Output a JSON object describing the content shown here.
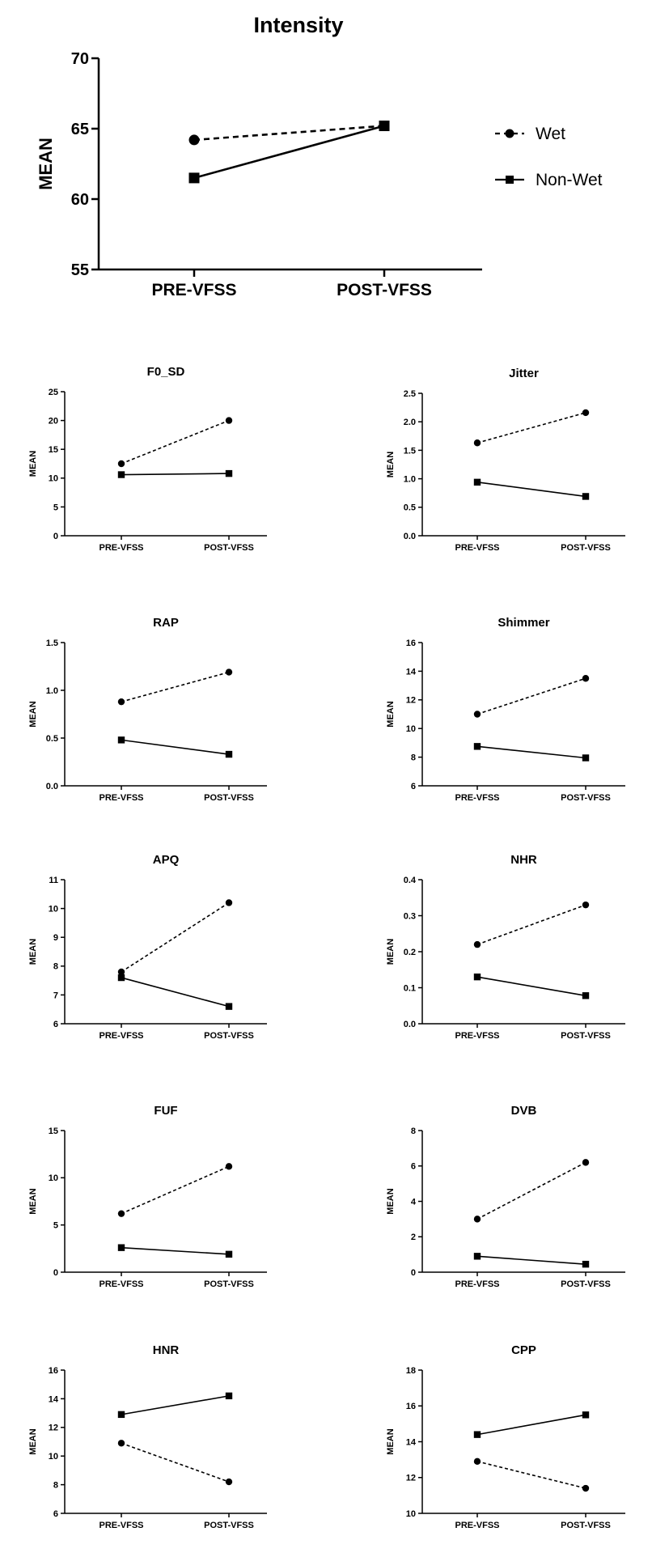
{
  "legend": {
    "position": "right of Intensity chart",
    "items": [
      {
        "label": "Wet",
        "line": "dashed",
        "marker": "circle"
      },
      {
        "label": "Non-Wet",
        "line": "solid",
        "marker": "square"
      }
    ]
  },
  "chart_data": [
    {
      "type": "line",
      "title": "Intensity",
      "ylabel": "MEAN",
      "categories": [
        "PRE-VFSS",
        "POST-VFSS"
      ],
      "ylim": [
        55,
        70
      ],
      "yticks": [
        "55",
        "60",
        "65",
        "70"
      ],
      "series": [
        {
          "name": "Wet",
          "values": [
            64.2,
            65.2
          ]
        },
        {
          "name": "Non-Wet",
          "values": [
            61.5,
            65.2
          ]
        }
      ]
    },
    {
      "type": "line",
      "title": "F0_SD",
      "ylabel": "MEAN",
      "categories": [
        "PRE-VFSS",
        "POST-VFSS"
      ],
      "ylim": [
        0,
        25
      ],
      "yticks": [
        "0",
        "5",
        "10",
        "15",
        "20",
        "25"
      ],
      "series": [
        {
          "name": "Wet",
          "values": [
            12.5,
            20.0
          ]
        },
        {
          "name": "Non-Wet",
          "values": [
            10.6,
            10.8
          ]
        }
      ]
    },
    {
      "type": "line",
      "title": "Jitter",
      "ylabel": "MEAN",
      "categories": [
        "PRE-VFSS",
        "POST-VFSS"
      ],
      "ylim": [
        0,
        2.5
      ],
      "yticks": [
        "0.0",
        "0.5",
        "1.0",
        "1.5",
        "2.0",
        "2.5"
      ],
      "series": [
        {
          "name": "Wet",
          "values": [
            1.63,
            2.16
          ]
        },
        {
          "name": "Non-Wet",
          "values": [
            0.94,
            0.69
          ]
        }
      ]
    },
    {
      "type": "line",
      "title": "RAP",
      "ylabel": "MEAN",
      "categories": [
        "PRE-VFSS",
        "POST-VFSS"
      ],
      "ylim": [
        0,
        1.5
      ],
      "yticks": [
        "0.0",
        "0.5",
        "1.0",
        "1.5"
      ],
      "series": [
        {
          "name": "Wet",
          "values": [
            0.88,
            1.19
          ]
        },
        {
          "name": "Non-Wet",
          "values": [
            0.48,
            0.33
          ]
        }
      ]
    },
    {
      "type": "line",
      "title": "Shimmer",
      "ylabel": "MEAN",
      "categories": [
        "PRE-VFSS",
        "POST-VFSS"
      ],
      "ylim": [
        6,
        16
      ],
      "yticks": [
        "6",
        "8",
        "10",
        "12",
        "14",
        "16"
      ],
      "series": [
        {
          "name": "Wet",
          "values": [
            11.0,
            13.5
          ]
        },
        {
          "name": "Non-Wet",
          "values": [
            8.75,
            7.95
          ]
        }
      ]
    },
    {
      "type": "line",
      "title": "APQ",
      "ylabel": "MEAN",
      "categories": [
        "PRE-VFSS",
        "POST-VFSS"
      ],
      "ylim": [
        6,
        11
      ],
      "yticks": [
        "6",
        "7",
        "8",
        "9",
        "10",
        "11"
      ],
      "series": [
        {
          "name": "Wet",
          "values": [
            7.8,
            10.2
          ]
        },
        {
          "name": "Non-Wet",
          "values": [
            7.6,
            6.6
          ]
        }
      ]
    },
    {
      "type": "line",
      "title": "NHR",
      "ylabel": "MEAN",
      "categories": [
        "PRE-VFSS",
        "POST-VFSS"
      ],
      "ylim": [
        0,
        0.4
      ],
      "yticks": [
        "0.0",
        "0.1",
        "0.2",
        "0.3",
        "0.4"
      ],
      "series": [
        {
          "name": "Wet",
          "values": [
            0.22,
            0.33
          ]
        },
        {
          "name": "Non-Wet",
          "values": [
            0.13,
            0.078
          ]
        }
      ]
    },
    {
      "type": "line",
      "title": "FUF",
      "ylabel": "MEAN",
      "categories": [
        "PRE-VFSS",
        "POST-VFSS"
      ],
      "ylim": [
        0,
        15
      ],
      "yticks": [
        "0",
        "5",
        "10",
        "15"
      ],
      "series": [
        {
          "name": "Wet",
          "values": [
            6.2,
            11.2
          ]
        },
        {
          "name": "Non-Wet",
          "values": [
            2.6,
            1.9
          ]
        }
      ]
    },
    {
      "type": "line",
      "title": "DVB",
      "ylabel": "MEAN",
      "categories": [
        "PRE-VFSS",
        "POST-VFSS"
      ],
      "ylim": [
        0,
        8
      ],
      "yticks": [
        "0",
        "2",
        "4",
        "6",
        "8"
      ],
      "series": [
        {
          "name": "Wet",
          "values": [
            3.0,
            6.2
          ]
        },
        {
          "name": "Non-Wet",
          "values": [
            0.9,
            0.45
          ]
        }
      ]
    },
    {
      "type": "line",
      "title": "HNR",
      "ylabel": "MEAN",
      "categories": [
        "PRE-VFSS",
        "POST-VFSS"
      ],
      "ylim": [
        6,
        16
      ],
      "yticks": [
        "6",
        "8",
        "10",
        "12",
        "14",
        "16"
      ],
      "series": [
        {
          "name": "Wet",
          "values": [
            10.9,
            8.2
          ]
        },
        {
          "name": "Non-Wet",
          "values": [
            12.9,
            14.2
          ]
        }
      ]
    },
    {
      "type": "line",
      "title": "CPP",
      "ylabel": "MEAN",
      "categories": [
        "PRE-VFSS",
        "POST-VFSS"
      ],
      "ylim": [
        10,
        18
      ],
      "yticks": [
        "10",
        "12",
        "14",
        "16",
        "18"
      ],
      "series": [
        {
          "name": "Wet",
          "values": [
            12.9,
            11.4
          ]
        },
        {
          "name": "Non-Wet",
          "values": [
            14.4,
            15.5
          ]
        }
      ]
    }
  ]
}
